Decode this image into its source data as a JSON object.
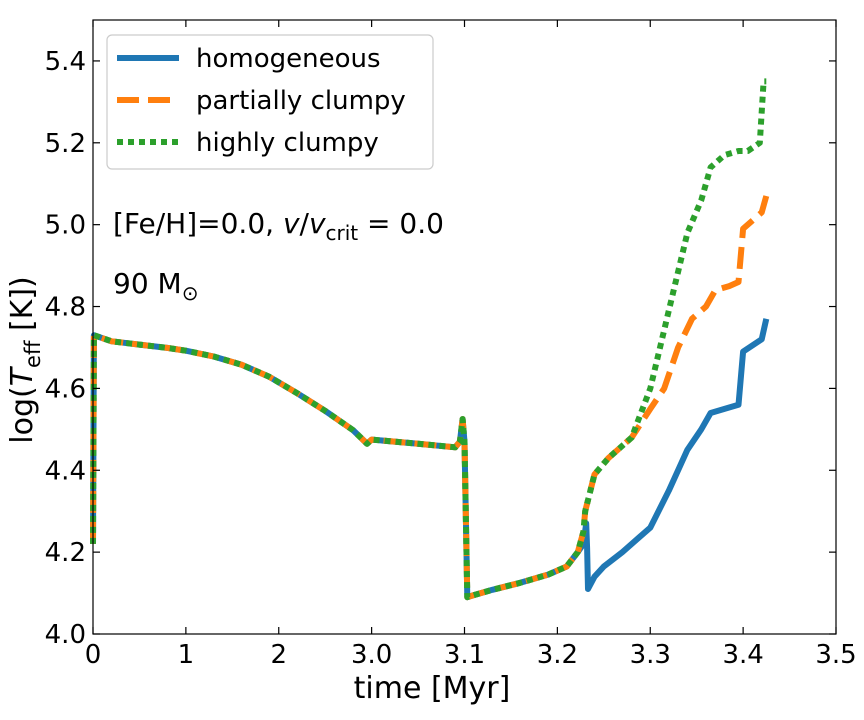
{
  "chart_data": {
    "type": "line",
    "title": "",
    "xlabel": "time [Myr]",
    "ylabel_main": "log(",
    "ylabel_T": "T",
    "ylabel_sub": "eff",
    "ylabel_tail": " [K])",
    "ylim": [
      4.0,
      5.5
    ],
    "xlim": [
      0,
      3.5
    ],
    "grid": false,
    "legend_position": "top-left",
    "x_ticks": [
      {
        "label": "0",
        "value": 0
      },
      {
        "label": "1",
        "value": 1
      },
      {
        "label": "2",
        "value": 2
      },
      {
        "label": "3.0",
        "value": 3.0
      },
      {
        "label": "3.1",
        "value": 3.1
      },
      {
        "label": "3.2",
        "value": 3.2
      },
      {
        "label": "3.3",
        "value": 3.3
      },
      {
        "label": "3.4",
        "value": 3.4
      },
      {
        "label": "3.5",
        "value": 3.5
      }
    ],
    "y_ticks": [
      {
        "label": "4.0",
        "value": 4.0
      },
      {
        "label": "4.2",
        "value": 4.2
      },
      {
        "label": "4.4",
        "value": 4.4
      },
      {
        "label": "4.6",
        "value": 4.6
      },
      {
        "label": "4.8",
        "value": 4.8
      },
      {
        "label": "5.0",
        "value": 5.0
      },
      {
        "label": "5.2",
        "value": 5.2
      },
      {
        "label": "5.4",
        "value": 5.4
      }
    ],
    "annotations": {
      "metallicity_text": "[Fe/H]=0.0, ",
      "rotation_v": "v",
      "rotation_slash": "/",
      "rotation_vcrit_v": "v",
      "rotation_vcrit_sub": "crit",
      "rotation_value": " = 0.0",
      "mass_text": "90 M",
      "mass_symbol": "⊙"
    },
    "x_breaks": [
      0,
      1,
      2,
      3.0,
      3.1,
      3.2,
      3.3,
      3.4,
      3.5
    ],
    "shared_track": [
      [
        0,
        4.22
      ],
      [
        0.01,
        4.73
      ],
      [
        0.2,
        4.715
      ],
      [
        0.5,
        4.707
      ],
      [
        0.8,
        4.699
      ],
      [
        1.0,
        4.692
      ],
      [
        1.3,
        4.678
      ],
      [
        1.6,
        4.658
      ],
      [
        1.9,
        4.628
      ],
      [
        2.2,
        4.588
      ],
      [
        2.5,
        4.545
      ],
      [
        2.8,
        4.498
      ],
      [
        2.95,
        4.465
      ],
      [
        3.0,
        4.475
      ],
      [
        3.05,
        4.465
      ],
      [
        3.09,
        4.456
      ],
      [
        3.095,
        4.47
      ],
      [
        3.098,
        4.525
      ],
      [
        3.1,
        4.47
      ],
      [
        3.103,
        4.09
      ],
      [
        3.11,
        4.095
      ],
      [
        3.13,
        4.108
      ],
      [
        3.16,
        4.125
      ],
      [
        3.19,
        4.145
      ],
      [
        3.21,
        4.165
      ],
      [
        3.222,
        4.2
      ]
    ],
    "series": [
      {
        "name": "homogeneous",
        "color": "#1f77b4",
        "dash": "solid",
        "tail": [
          [
            3.228,
            4.22
          ],
          [
            3.231,
            4.27
          ],
          [
            3.232,
            4.21
          ],
          [
            3.233,
            4.11
          ],
          [
            3.24,
            4.14
          ],
          [
            3.25,
            4.165
          ],
          [
            3.27,
            4.2
          ],
          [
            3.285,
            4.23
          ],
          [
            3.3,
            4.26
          ],
          [
            3.32,
            4.35
          ],
          [
            3.34,
            4.45
          ],
          [
            3.355,
            4.5
          ],
          [
            3.365,
            4.54
          ],
          [
            3.38,
            4.55
          ],
          [
            3.395,
            4.56
          ],
          [
            3.4,
            4.69
          ],
          [
            3.42,
            4.72
          ],
          [
            3.425,
            4.77
          ]
        ]
      },
      {
        "name": "partially clumpy",
        "color": "#ff7f0e",
        "dash": "dashed",
        "tail": [
          [
            3.228,
            4.25
          ],
          [
            3.23,
            4.3
          ],
          [
            3.24,
            4.39
          ],
          [
            3.255,
            4.43
          ],
          [
            3.28,
            4.48
          ],
          [
            3.3,
            4.55
          ],
          [
            3.315,
            4.6
          ],
          [
            3.33,
            4.7
          ],
          [
            3.345,
            4.77
          ],
          [
            3.36,
            4.8
          ],
          [
            3.37,
            4.84
          ],
          [
            3.385,
            4.85
          ],
          [
            3.395,
            4.86
          ],
          [
            3.4,
            4.99
          ],
          [
            3.42,
            5.03
          ],
          [
            3.425,
            5.07
          ]
        ]
      },
      {
        "name": "highly clumpy",
        "color": "#2ca02c",
        "dash": "dotted",
        "tail": [
          [
            3.228,
            4.25
          ],
          [
            3.23,
            4.3
          ],
          [
            3.24,
            4.39
          ],
          [
            3.255,
            4.43
          ],
          [
            3.28,
            4.48
          ],
          [
            3.3,
            4.6
          ],
          [
            3.32,
            4.79
          ],
          [
            3.34,
            4.98
          ],
          [
            3.355,
            5.06
          ],
          [
            3.365,
            5.14
          ],
          [
            3.38,
            5.17
          ],
          [
            3.395,
            5.18
          ],
          [
            3.405,
            5.18
          ],
          [
            3.418,
            5.2
          ],
          [
            3.422,
            5.35
          ],
          [
            3.425,
            5.35
          ]
        ]
      }
    ]
  }
}
